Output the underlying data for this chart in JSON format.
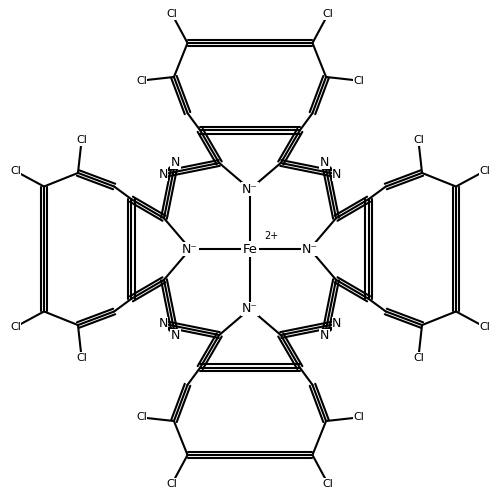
{
  "background_color": "#ffffff",
  "line_color": "#000000",
  "line_width": 1.5,
  "font_size": 9.0,
  "figsize": [
    5.0,
    4.98
  ],
  "dpi": 100,
  "xlim": [
    -5.5,
    5.5
  ],
  "ylim": [
    -5.5,
    5.5
  ]
}
